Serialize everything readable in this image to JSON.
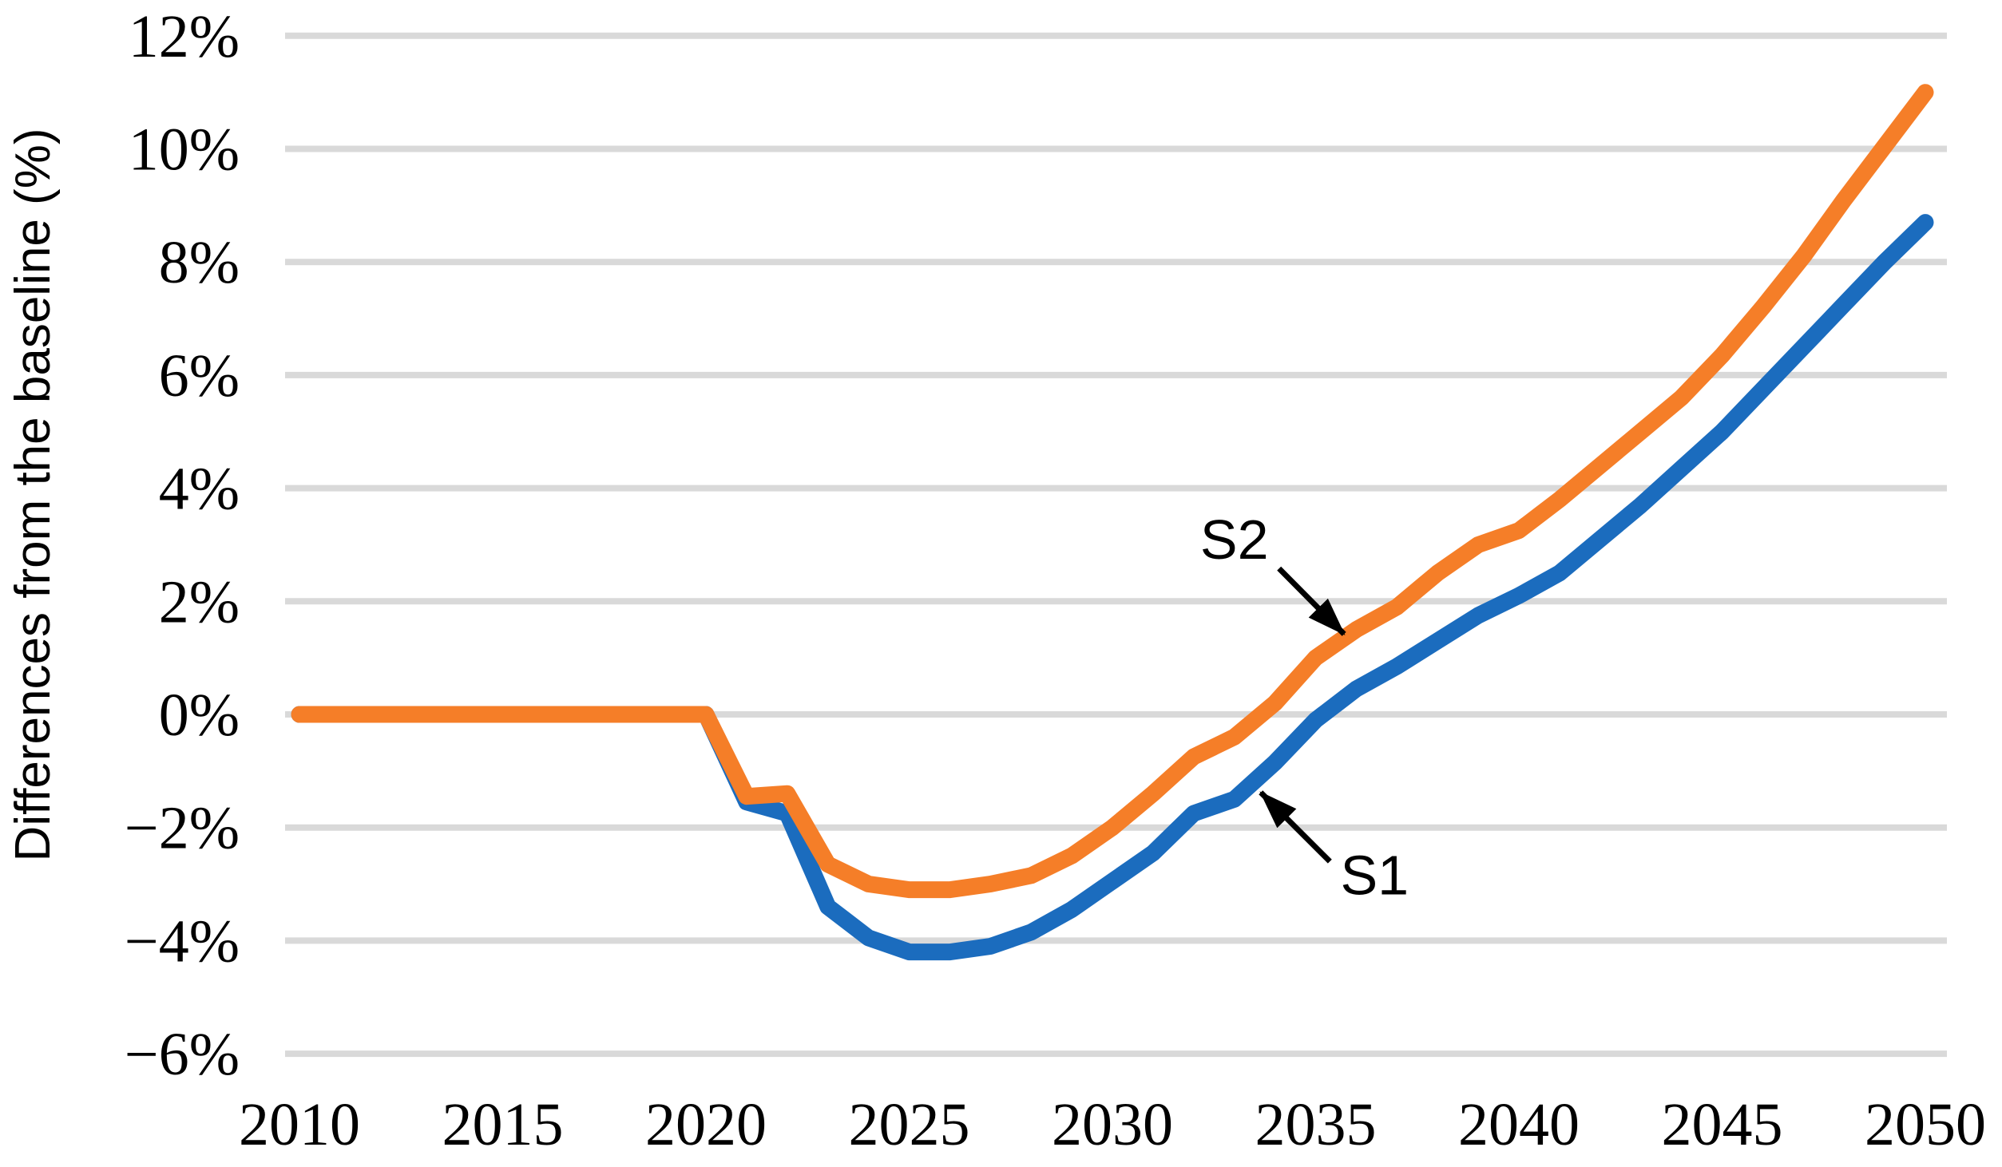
{
  "chart_data": {
    "type": "line",
    "title": "",
    "xlabel": "",
    "ylabel": "Differences from the baseline (%)",
    "grid": true,
    "grid_color": "#d9d9d9",
    "background_color": "#ffffff",
    "ylim": [
      -6,
      12
    ],
    "xlim": [
      2010,
      2050
    ],
    "x_ticks": [
      "2010",
      "2015",
      "2020",
      "2025",
      "2030",
      "2035",
      "2040",
      "2045",
      "2050"
    ],
    "y_ticks": [
      {
        "label": "12%",
        "value": 12
      },
      {
        "label": "10%",
        "value": 10
      },
      {
        "label": "8%",
        "value": 8
      },
      {
        "label": "6%",
        "value": 6
      },
      {
        "label": "4%",
        "value": 4
      },
      {
        "label": "2%",
        "value": 2
      },
      {
        "label": "0%",
        "value": 0
      },
      {
        "label": "−2%",
        "value": -2
      },
      {
        "label": "−4%",
        "value": -4
      },
      {
        "label": "−6%",
        "value": -6
      }
    ],
    "x": [
      2010,
      2011,
      2012,
      2013,
      2014,
      2015,
      2016,
      2017,
      2018,
      2019,
      2020,
      2021,
      2022,
      2023,
      2024,
      2025,
      2026,
      2027,
      2028,
      2029,
      2030,
      2031,
      2032,
      2033,
      2034,
      2035,
      2036,
      2037,
      2038,
      2039,
      2040,
      2041,
      2042,
      2043,
      2044,
      2045,
      2046,
      2047,
      2048,
      2049,
      2050
    ],
    "series": [
      {
        "name": "S1",
        "color": "#1b6cbe",
        "values": [
          0,
          0,
          0,
          0,
          0,
          0,
          0,
          0,
          0,
          0,
          0,
          -1.55,
          -1.75,
          -3.4,
          -3.95,
          -4.2,
          -4.2,
          -4.1,
          -3.85,
          -3.45,
          -2.95,
          -2.45,
          -1.75,
          -1.5,
          -0.85,
          -0.1,
          0.45,
          0.85,
          1.3,
          1.75,
          2.1,
          2.5,
          3.1,
          3.7,
          4.35,
          5.0,
          5.75,
          6.5,
          7.25,
          8.0,
          8.7
        ]
      },
      {
        "name": "S2",
        "color": "#f57e28",
        "values": [
          0,
          0,
          0,
          0,
          0,
          0,
          0,
          0,
          0,
          0,
          0,
          -1.45,
          -1.4,
          -2.65,
          -3.0,
          -3.1,
          -3.1,
          -3.0,
          -2.85,
          -2.5,
          -2.0,
          -1.4,
          -0.75,
          -0.4,
          0.2,
          1.0,
          1.5,
          1.9,
          2.5,
          3.0,
          3.25,
          3.8,
          4.4,
          5.0,
          5.6,
          6.35,
          7.2,
          8.1,
          9.1,
          10.05,
          11.0
        ]
      }
    ],
    "annotations": [
      {
        "text": "S2",
        "text_year": 2033.0,
        "text_value": 2.75,
        "arrow_from_year": 2034.1,
        "arrow_from_value": 2.58,
        "arrow_to_year": 2035.7,
        "arrow_to_value": 1.42
      },
      {
        "text": "S1",
        "text_year": 2036.45,
        "text_value": -3.18,
        "arrow_from_year": 2035.35,
        "arrow_from_value": -2.6,
        "arrow_to_year": 2033.65,
        "arrow_to_value": -1.38
      }
    ],
    "legend_position": "none"
  }
}
